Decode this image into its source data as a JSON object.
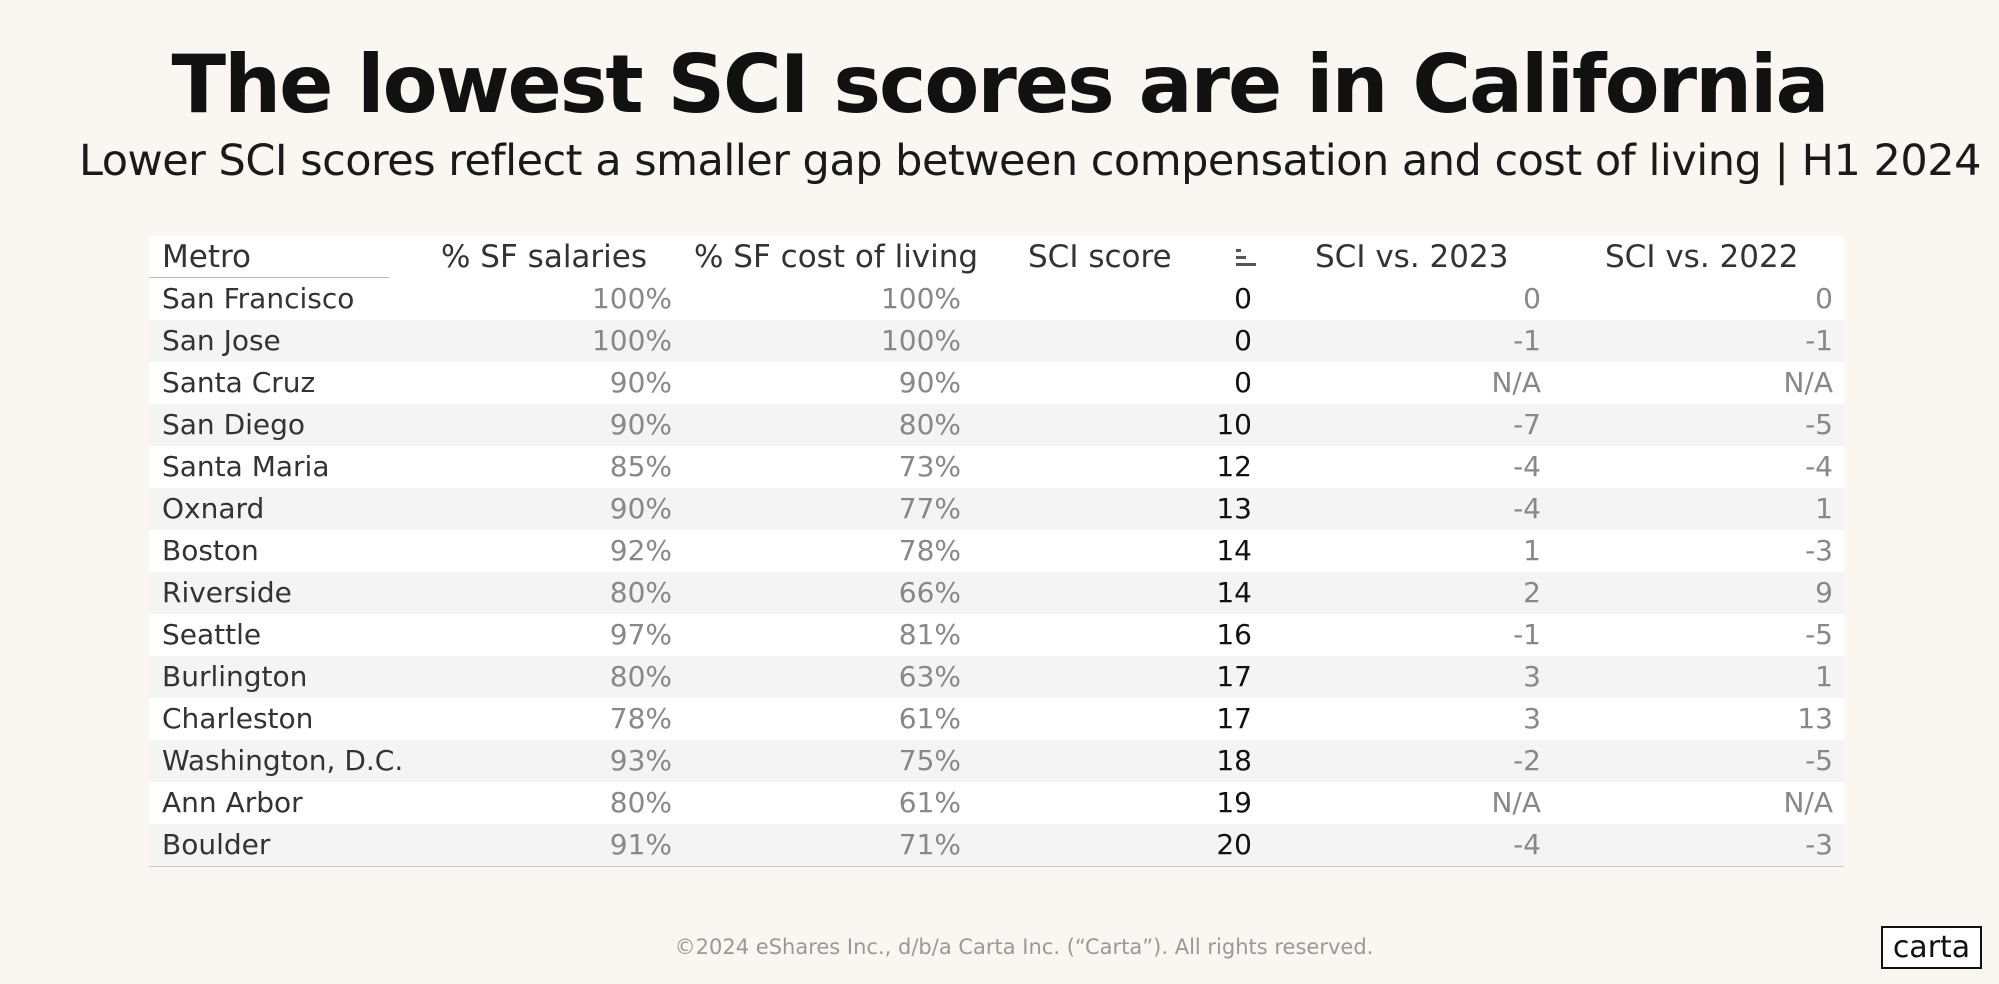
{
  "header": {
    "title": "The lowest SCI scores are in California",
    "subtitle": "Lower SCI scores reflect a smaller gap between compensation and cost of living  | H1 2024"
  },
  "table": {
    "columns": [
      "Metro",
      "% SF salaries",
      "% SF cost of living",
      "SCI score",
      "SCI vs. 2023",
      "SCI vs. 2022"
    ],
    "rows": [
      [
        "San Francisco",
        "100%",
        "100%",
        "0",
        "0",
        "0"
      ],
      [
        "San Jose",
        "100%",
        "100%",
        "0",
        "-1",
        "-1"
      ],
      [
        "Santa Cruz",
        "90%",
        "90%",
        "0",
        "N/A",
        "N/A"
      ],
      [
        "San Diego",
        "90%",
        "80%",
        "10",
        "-7",
        "-5"
      ],
      [
        "Santa Maria",
        "85%",
        "73%",
        "12",
        "-4",
        "-4"
      ],
      [
        "Oxnard",
        "90%",
        "77%",
        "13",
        "-4",
        "1"
      ],
      [
        "Boston",
        "92%",
        "78%",
        "14",
        "1",
        "-3"
      ],
      [
        "Riverside",
        "80%",
        "66%",
        "14",
        "2",
        "9"
      ],
      [
        "Seattle",
        "97%",
        "81%",
        "16",
        "-1",
        "-5"
      ],
      [
        "Burlington",
        "80%",
        "63%",
        "17",
        "3",
        "1"
      ],
      [
        "Charleston",
        "78%",
        "61%",
        "17",
        "3",
        "13"
      ],
      [
        "Washington, D.C.",
        "93%",
        "75%",
        "18",
        "-2",
        "-5"
      ],
      [
        "Ann Arbor",
        "80%",
        "61%",
        "19",
        "N/A",
        "N/A"
      ],
      [
        "Boulder",
        "91%",
        "71%",
        "20",
        "-4",
        "-3"
      ]
    ]
  },
  "footer": {
    "copyright": "©2024 eShares Inc., d/b/a Carta Inc. (“Carta”). All rights reserved.",
    "logo": "carta"
  }
}
